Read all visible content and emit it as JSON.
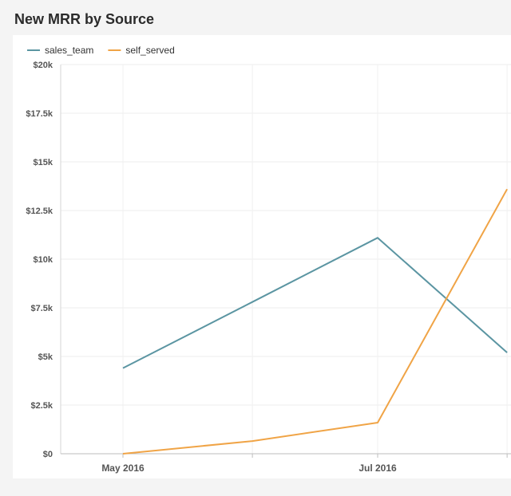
{
  "panel": {
    "title": "New MRR by Source"
  },
  "chart_data": {
    "type": "line",
    "title": "New MRR by Source",
    "xlabel": "",
    "ylabel": "",
    "x": [
      "2016-05-01",
      "2016-06-01",
      "2016-07-01",
      "2016-08-01"
    ],
    "x_tick_labels": [
      "May 2016",
      "Jul 2016"
    ],
    "y_tick_labels": [
      "$0",
      "$2.5k",
      "$5k",
      "$7.5k",
      "$10k",
      "$12.5k",
      "$15k",
      "$17.5k",
      "$20k"
    ],
    "ylim": [
      0,
      20000
    ],
    "grid": true,
    "legend_position": "top-left",
    "series": [
      {
        "name": "sales_team",
        "color": "#5b95a2",
        "values": [
          4400,
          7800,
          11100,
          5200
        ]
      },
      {
        "name": "self_served",
        "color": "#f0a446",
        "values": [
          0,
          650,
          1600,
          13600
        ]
      }
    ]
  }
}
